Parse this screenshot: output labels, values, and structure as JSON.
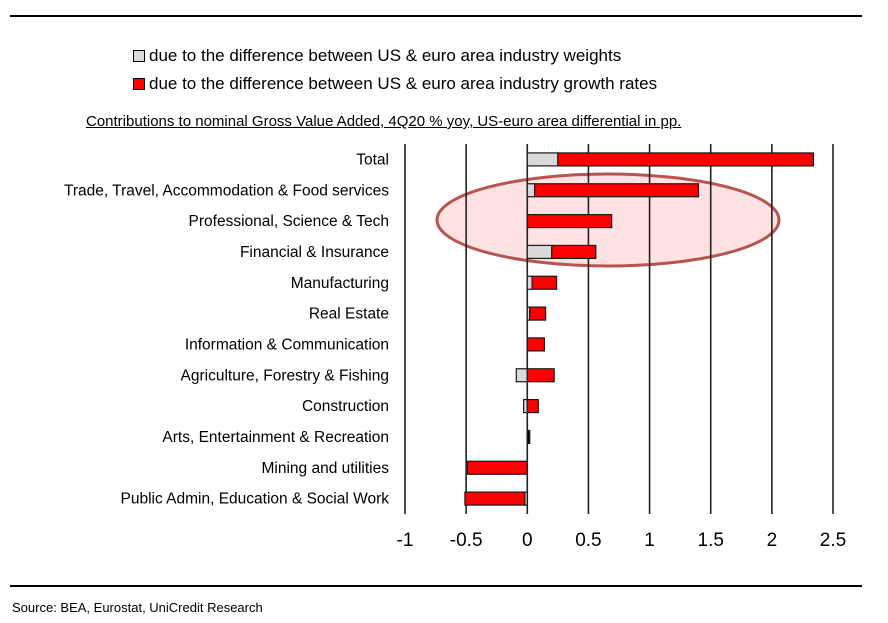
{
  "chart_data": {
    "type": "bar",
    "orientation": "horizontal",
    "stacked": true,
    "title": "Contributions to nominal Gross Value Added, 4Q20 % yoy, US-euro area differential in pp.",
    "xlabel": "",
    "ylabel": "",
    "xlim": [
      -1,
      2.5
    ],
    "xticks": [
      "-1",
      "-0.5",
      "0",
      "0.5",
      "1",
      "1.5",
      "2",
      "2.5"
    ],
    "grid": "vertical",
    "legend_position": "top",
    "categories": [
      "Total",
      "Trade, Travel, Accommodation & Food services",
      "Professional, Science & Tech",
      "Financial & Insurance",
      "Manufacturing",
      "Real Estate",
      "Information & Communication",
      "Agriculture, Forestry & Fishing",
      "Construction",
      "Arts, Entertainment & Recreation",
      "Mining and utilities",
      "Public Admin, Education & Social Work"
    ],
    "series": [
      {
        "name": "due to the difference between US & euro area industry weights",
        "color": "#d9d9d9",
        "values": [
          0.25,
          0.06,
          0.0,
          0.2,
          0.04,
          0.02,
          0.0,
          -0.09,
          -0.03,
          0.02,
          0.0,
          -0.02
        ]
      },
      {
        "name": "due to the difference between US & euro area industry growth rates",
        "color": "#ff0000",
        "values": [
          2.09,
          1.34,
          0.69,
          0.36,
          0.2,
          0.13,
          0.14,
          0.22,
          0.09,
          0.0,
          -0.49,
          -0.49
        ]
      }
    ],
    "annotation": "highlight ellipse around Trade, Professional and Financial rows"
  },
  "source": "Source: BEA, Eurostat, UniCredit Research"
}
